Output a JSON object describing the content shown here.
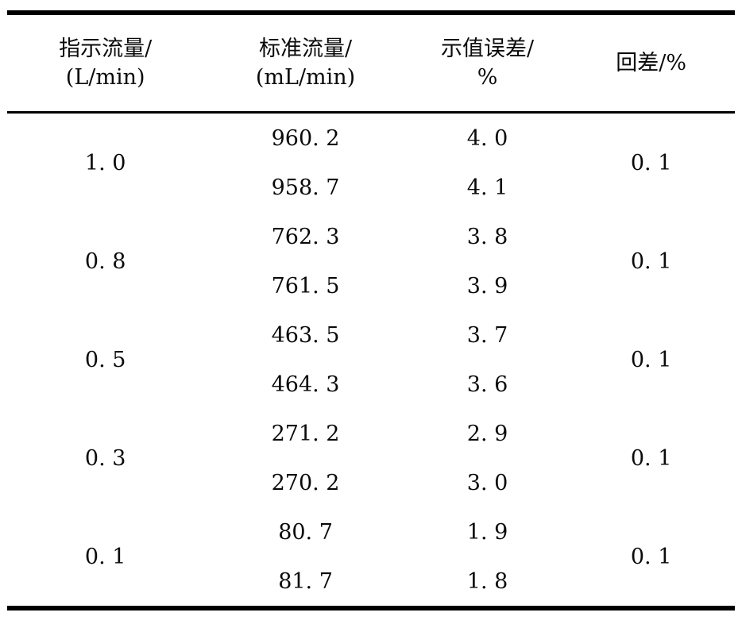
{
  "table": {
    "headers": [
      {
        "line1": "指示流量/",
        "line2": "(L/min)"
      },
      {
        "line1": "标准流量/",
        "line2": "(mL/min)"
      },
      {
        "line1": "示值误差/",
        "line2": "%"
      },
      {
        "line1": "回差/%",
        "line2": ""
      }
    ],
    "groups": [
      {
        "indicated_flow": "1. 0",
        "hysteresis": "0. 1",
        "rows": [
          {
            "standard_flow": "960. 2",
            "error": "4. 0"
          },
          {
            "standard_flow": "958. 7",
            "error": "4. 1"
          }
        ]
      },
      {
        "indicated_flow": "0. 8",
        "hysteresis": "0. 1",
        "rows": [
          {
            "standard_flow": "762. 3",
            "error": "3. 8"
          },
          {
            "standard_flow": "761. 5",
            "error": "3. 9"
          }
        ]
      },
      {
        "indicated_flow": "0. 5",
        "hysteresis": "0. 1",
        "rows": [
          {
            "standard_flow": "463. 5",
            "error": "3. 7"
          },
          {
            "standard_flow": "464. 3",
            "error": "3. 6"
          }
        ]
      },
      {
        "indicated_flow": "0. 3",
        "hysteresis": "0. 1",
        "rows": [
          {
            "standard_flow": "271. 2",
            "error": "2. 9"
          },
          {
            "standard_flow": "270. 2",
            "error": "3. 0"
          }
        ]
      },
      {
        "indicated_flow": "0. 1",
        "hysteresis": "0. 1",
        "rows": [
          {
            "standard_flow": "80. 7",
            "error": "1. 9"
          },
          {
            "standard_flow": "81. 7",
            "error": "1. 8"
          }
        ]
      }
    ]
  }
}
